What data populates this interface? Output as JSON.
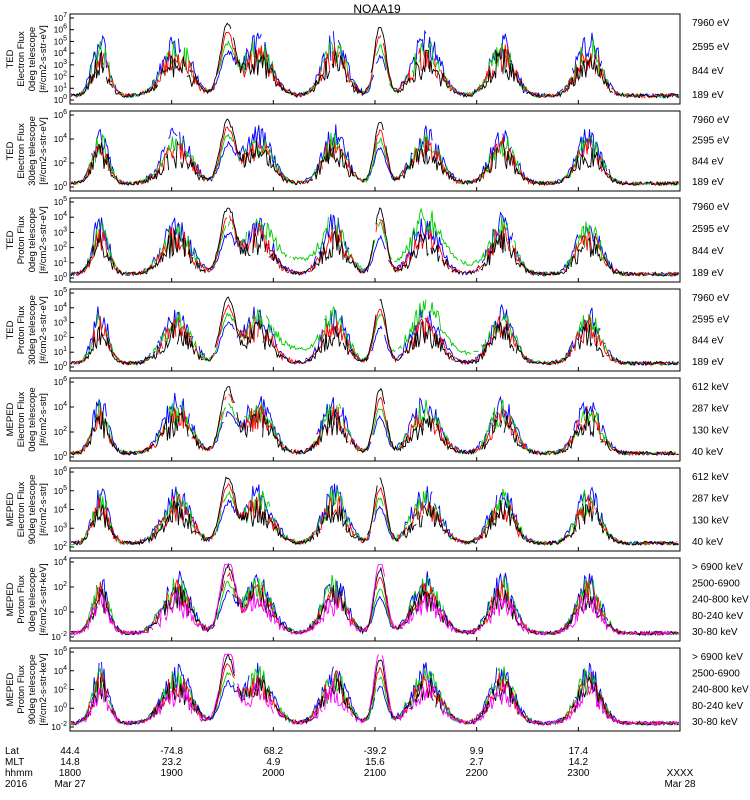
{
  "chart_data": {
    "type": "line",
    "title": "NOAA19",
    "panels": [
      {
        "ylabel_lines": [
          "TED",
          "Electron Flux",
          "0deg telescope",
          "[#/cm2-s-str-eV]"
        ],
        "y_ticks": [
          "10^7",
          "10^6",
          "10^5",
          "10^4",
          "10^3",
          "10^2",
          "10^1",
          "10^0"
        ],
        "ylim_exp": [
          0,
          7
        ],
        "legend": [
          {
            "label": "7960 eV",
            "color": "#000000"
          },
          {
            "label": "2595 eV",
            "color": "#ff0000"
          },
          {
            "label": "844 eV",
            "color": "#00cc00"
          },
          {
            "label": "189 eV",
            "color": "#0000ff"
          }
        ]
      },
      {
        "ylabel_lines": [
          "TED",
          "Electron Flux",
          "30deg telescope",
          "[#/cm2-s-str-eV]"
        ],
        "y_ticks": [
          "10^6",
          "10^4",
          "10^2",
          "10^0"
        ],
        "ylim_exp": [
          0,
          7
        ],
        "legend": [
          {
            "label": "7960 eV",
            "color": "#000000"
          },
          {
            "label": "2595 eV",
            "color": "#ff0000"
          },
          {
            "label": "844 eV",
            "color": "#00cc00"
          },
          {
            "label": "189 eV",
            "color": "#0000ff"
          }
        ]
      },
      {
        "ylabel_lines": [
          "TED",
          "Proton Flux",
          "0deg telescope",
          "[#/cm2-s-str-eV]"
        ],
        "y_ticks": [
          "10^5",
          "10^4",
          "10^3",
          "10^2",
          "10^1",
          "10^0"
        ],
        "ylim_exp": [
          0,
          5
        ],
        "legend": [
          {
            "label": "7960 eV",
            "color": "#000000"
          },
          {
            "label": "2595 eV",
            "color": "#ff0000"
          },
          {
            "label": "844 eV",
            "color": "#00cc00"
          },
          {
            "label": "189 eV",
            "color": "#0000ff"
          }
        ]
      },
      {
        "ylabel_lines": [
          "TED",
          "Proton Flux",
          "30deg telescope",
          "[#/cm2-s-str-eV]"
        ],
        "y_ticks": [
          "10^5",
          "10^4",
          "10^3",
          "10^2",
          "10^1",
          "10^0"
        ],
        "ylim_exp": [
          0,
          5
        ],
        "legend": [
          {
            "label": "7960 eV",
            "color": "#000000"
          },
          {
            "label": "2595 eV",
            "color": "#ff0000"
          },
          {
            "label": "844 eV",
            "color": "#00cc00"
          },
          {
            "label": "189 eV",
            "color": "#0000ff"
          }
        ]
      },
      {
        "ylabel_lines": [
          "MEPED",
          "Electron Flux",
          "0deg telescope",
          "[#/cm2-s-str]"
        ],
        "y_ticks": [
          "10^6",
          "10^4",
          "10^2",
          "10^0"
        ],
        "ylim_exp": [
          0,
          6
        ],
        "legend": [
          {
            "label": "612 keV",
            "color": "#000000"
          },
          {
            "label": "287 keV",
            "color": "#ff0000"
          },
          {
            "label": "130 keV",
            "color": "#00cc00"
          },
          {
            "label": "40 keV",
            "color": "#0000ff"
          }
        ]
      },
      {
        "ylabel_lines": [
          "MEPED",
          "Electron Flux",
          "90deg telescope",
          "[#/cm2-s-str]"
        ],
        "y_ticks": [
          "10^6",
          "10^5",
          "10^4",
          "10^3",
          "10^2"
        ],
        "ylim_exp": [
          2,
          6
        ],
        "legend": [
          {
            "label": "612 keV",
            "color": "#000000"
          },
          {
            "label": "287 keV",
            "color": "#ff0000"
          },
          {
            "label": "130 keV",
            "color": "#00cc00"
          },
          {
            "label": "40 keV",
            "color": "#0000ff"
          }
        ]
      },
      {
        "ylabel_lines": [
          "MEPED",
          "Proton Flux",
          "0deg telescope",
          "[#/cm2-s-str-keV]"
        ],
        "y_ticks": [
          "10^4",
          "10^2",
          "10^0",
          "10^-2"
        ],
        "ylim_exp": [
          -2,
          5
        ],
        "legend": [
          {
            "label": "> 6900 keV",
            "color": "#ff00ff"
          },
          {
            "label": "2500-6900",
            "color": "#000000"
          },
          {
            "label": "240-800 keV",
            "color": "#ff0000"
          },
          {
            "label": "80-240 keV",
            "color": "#00cc00"
          },
          {
            "label": "30-80 keV",
            "color": "#0000ff"
          }
        ]
      },
      {
        "ylabel_lines": [
          "MEPED",
          "Proton Flux",
          "90deg telescope",
          "[#/cm2-s-str-keV]"
        ],
        "y_ticks": [
          "10^6",
          "10^4",
          "10^2",
          "10^0",
          "10^-2"
        ],
        "ylim_exp": [
          -2,
          6
        ],
        "legend": [
          {
            "label": "> 6900 keV",
            "color": "#ff00ff"
          },
          {
            "label": "2500-6900",
            "color": "#000000"
          },
          {
            "label": "240-800 keV",
            "color": "#ff0000"
          },
          {
            "label": "80-240 keV",
            "color": "#00cc00"
          },
          {
            "label": "30-80 keV",
            "color": "#0000ff"
          }
        ]
      }
    ],
    "x_axis": {
      "row_labels": [
        "Lat",
        "MLT",
        "hhmm",
        "2016"
      ],
      "xlim_hours": [
        18.0,
        24.0
      ],
      "columns": [
        {
          "t": 18.0,
          "values": [
            "44.4",
            "14.8",
            "1800",
            "Mar 27"
          ]
        },
        {
          "t": 19.0,
          "values": [
            "-74.8",
            "23.2",
            "1900",
            ""
          ]
        },
        {
          "t": 20.0,
          "values": [
            "68.2",
            "4.9",
            "2000",
            ""
          ]
        },
        {
          "t": 21.0,
          "values": [
            "-39.2",
            "15.6",
            "2100",
            ""
          ]
        },
        {
          "t": 22.0,
          "values": [
            "9.9",
            "2.7",
            "2200",
            ""
          ]
        },
        {
          "t": 23.0,
          "values": [
            "17.4",
            "14.2",
            "2300",
            ""
          ]
        },
        {
          "t": 24.0,
          "values": [
            "",
            "",
            "XXXX",
            "Mar 28"
          ]
        }
      ]
    },
    "pass_events": [
      {
        "t": 18.3,
        "w": 0.2
      },
      {
        "t": 19.05,
        "w": 0.35
      },
      {
        "t": 19.85,
        "w": 0.35
      },
      {
        "t": 20.6,
        "w": 0.3
      },
      {
        "t": 21.5,
        "w": 0.35
      },
      {
        "t": 22.25,
        "w": 0.3
      },
      {
        "t": 23.1,
        "w": 0.3
      }
    ],
    "equatorial_events": [
      {
        "t": 19.55,
        "w": 0.22
      },
      {
        "t": 21.05,
        "w": 0.18
      }
    ]
  }
}
